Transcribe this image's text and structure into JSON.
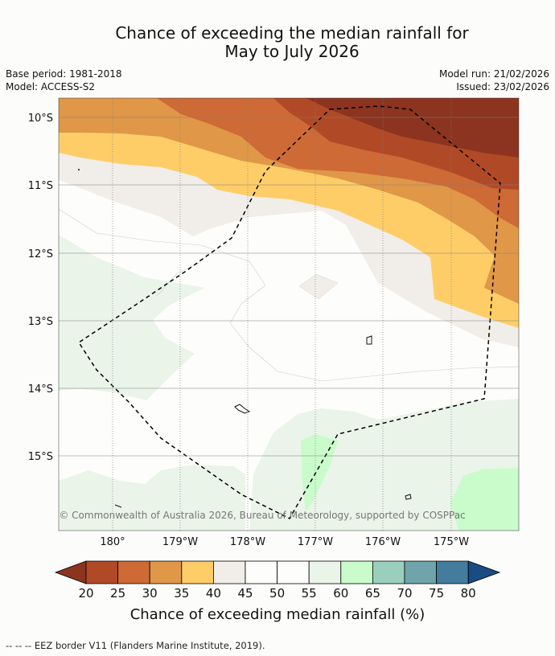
{
  "title_line1": "Chance of exceeding the median rainfall for",
  "title_line2": "May to July 2026",
  "meta_left": [
    "Base period: 1981-2018",
    "Model: ACCESS-S2"
  ],
  "meta_right": [
    "Model run: 21/02/2026",
    "Issued: 23/02/2026"
  ],
  "map": {
    "lat_labels": [
      "10°S",
      "11°S",
      "12°S",
      "13°S",
      "14°S",
      "15°S"
    ],
    "lon_labels": [
      "180°",
      "179°W",
      "178°W",
      "177°W",
      "176°W",
      "175°W"
    ],
    "copyright": "© Commonwealth of Australia 2026, Bureau of Meteorology, supported by COSPPac"
  },
  "colorbar": {
    "tick_labels": [
      "20",
      "25",
      "30",
      "35",
      "40",
      "45",
      "50",
      "55",
      "60",
      "65",
      "70",
      "75",
      "80"
    ],
    "colors": [
      "#8c3420",
      "#b04a26",
      "#cd6a36",
      "#e09748",
      "#fecd68",
      "#f1ede8",
      "#fdfefc",
      "#fdfefc",
      "#eaf4e9",
      "#c9fbcb",
      "#9acfbe",
      "#6fa5aa",
      "#437c9c",
      "#1a4c84"
    ],
    "label": "Chance of exceeding median rainfall (%)"
  },
  "legend": {
    "line_symbol": "-- -- --",
    "text": "EEZ border V11 (Flanders Marine Institute, 2019)."
  }
}
